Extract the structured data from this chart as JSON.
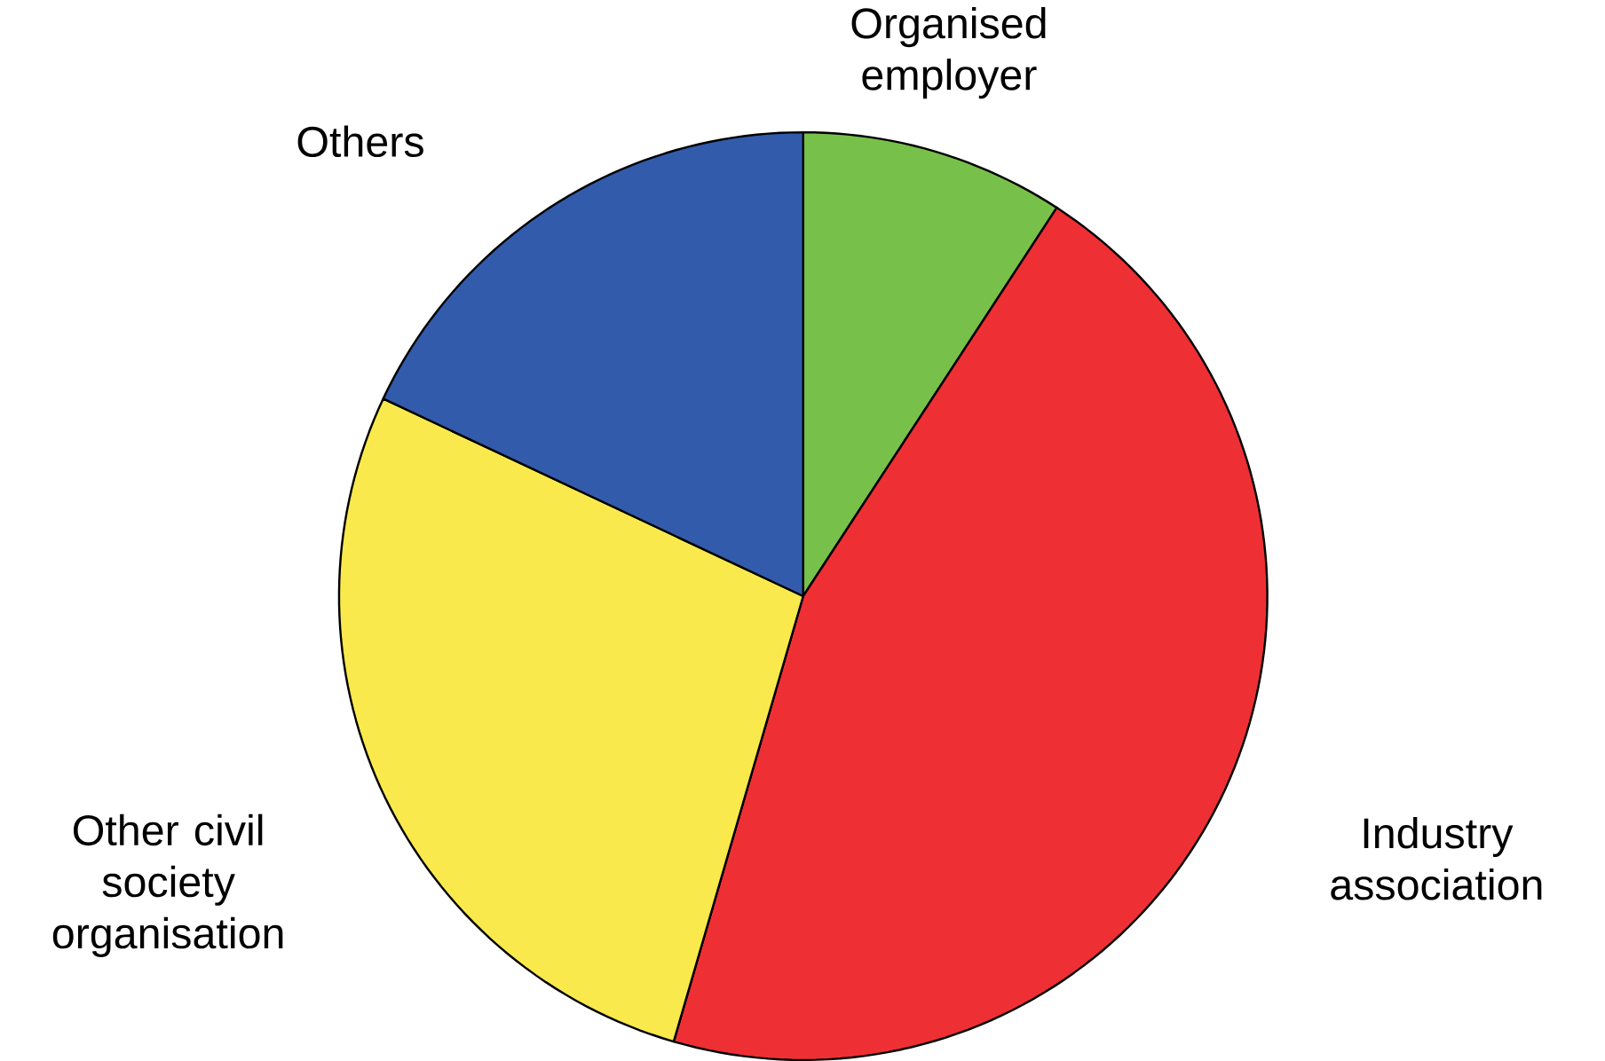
{
  "chart_data": {
    "type": "pie",
    "categories": [
      "Organised employer",
      "Industry association",
      "Other civil society organisation",
      "Others"
    ],
    "values": [
      9.2,
      45.3,
      27.5,
      18.0
    ],
    "colors": [
      "#77c14a",
      "#ee3034",
      "#f9e94d",
      "#335bab"
    ]
  }
}
